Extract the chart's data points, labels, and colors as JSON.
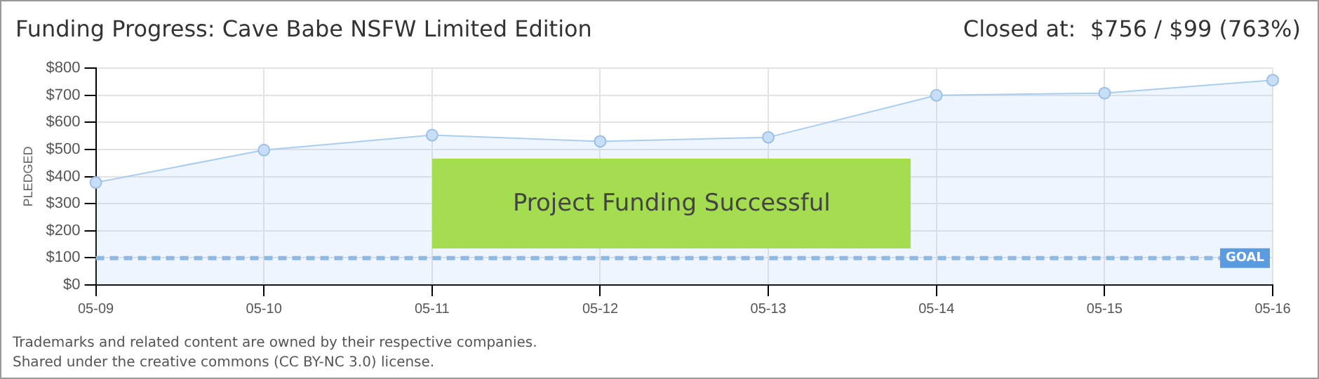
{
  "chart_data": {
    "type": "area",
    "title": "Funding Progress: Cave Babe NSFW Limited Edition",
    "subtitle": "Closed at:  $756 / $99 (763%)",
    "ylabel": "PLEDGED",
    "categories": [
      "05-09",
      "05-10",
      "05-11",
      "05-12",
      "05-13",
      "05-14",
      "05-15",
      "05-16"
    ],
    "series": [
      {
        "color": "#a9cdf0",
        "values": [
          378,
          498,
          553,
          530,
          545,
          700,
          708,
          756
        ]
      }
    ],
    "ylim": [
      0,
      800
    ],
    "yticks": [
      {
        "value": 0,
        "label": "$0"
      },
      {
        "value": 100,
        "label": "$100"
      },
      {
        "value": 200,
        "label": "$200"
      },
      {
        "value": 300,
        "label": "$300"
      },
      {
        "value": 400,
        "label": "$400"
      },
      {
        "value": 500,
        "label": "$500"
      },
      {
        "value": 600,
        "label": "$600"
      },
      {
        "value": 700,
        "label": "$700"
      },
      {
        "value": 800,
        "label": "$800"
      }
    ],
    "ref_lines": [
      {
        "axis": "y",
        "value": 99,
        "label": "GOAL",
        "color": "#8fb8e3",
        "line_style": "dashed"
      }
    ],
    "annotations": [
      "Project Funding Successful",
      "Trademarks and related content are owned by their respective companies.",
      "Shared under the creative commons (CC BY-NC 3.0) license."
    ],
    "grid": true,
    "legend": false,
    "marker": "circle",
    "line_style": "solid"
  }
}
